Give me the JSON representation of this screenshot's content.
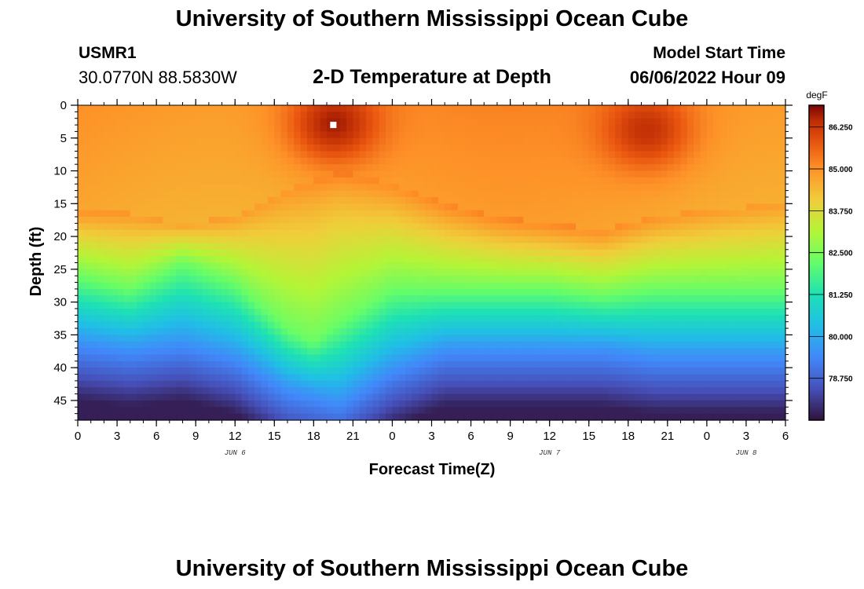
{
  "header": {
    "title": "University of Southern Mississippi Ocean Cube",
    "station_id": "USMR1",
    "coordinates": "30.0770N  88.5830W",
    "chart_title": "2-D Temperature at Depth",
    "model_start_label": "Model Start Time",
    "model_start_value": "06/06/2022 Hour 09"
  },
  "footer": {
    "title": "University of Southern Mississippi Ocean Cube"
  },
  "chart_data": {
    "type": "heatmap",
    "title": "2-D Temperature at Depth",
    "xlabel": "Forecast Time(Z)",
    "ylabel": "Depth (ft)",
    "x_range_hours": [
      0,
      54
    ],
    "x_tick_hours": [
      0,
      3,
      6,
      9,
      12,
      15,
      18,
      21,
      24,
      27,
      30,
      33,
      36,
      39,
      42,
      45,
      48,
      51,
      54
    ],
    "x_tick_labels": [
      "0",
      "3",
      "6",
      "9",
      "12",
      "15",
      "18",
      "21",
      "0",
      "3",
      "6",
      "9",
      "12",
      "15",
      "18",
      "21",
      "0",
      "3",
      "6"
    ],
    "date_labels": [
      {
        "text": "JUN 6",
        "hour": 12
      },
      {
        "text": "JUN 7",
        "hour": 36
      },
      {
        "text": "JUN 8",
        "hour": 51
      }
    ],
    "y_range_ft": [
      0,
      48
    ],
    "y_reversed": true,
    "y_ticks": [
      0,
      5,
      10,
      15,
      20,
      25,
      30,
      35,
      40,
      45
    ],
    "y_tick_labels": [
      "0",
      "5",
      "10",
      "15",
      "20",
      "25",
      "30",
      "35",
      "40",
      "45"
    ],
    "colorbar": {
      "unit": "degF",
      "range": [
        77.5,
        86.9
      ],
      "ticks": [
        78.75,
        80.0,
        81.25,
        82.5,
        83.75,
        85.0,
        86.25
      ],
      "tick_labels": [
        "78.750",
        "80.000",
        "81.250",
        "82.500",
        "83.750",
        "85.000",
        "86.250"
      ]
    },
    "surface_temperature_peaks": [
      {
        "hour": 19.5,
        "depth_ft": 3,
        "value": 86.9
      },
      {
        "hour": 43.5,
        "depth_ft": 4,
        "value": 86.6
      }
    ],
    "thermocline_depth_ft": {
      "hours": [
        0,
        4,
        8,
        12,
        16,
        20,
        24,
        28,
        32,
        36,
        40,
        44,
        48,
        54
      ],
      "values": [
        19,
        19.5,
        21,
        20,
        16,
        13,
        15,
        18,
        20,
        21,
        22,
        20,
        19,
        18
      ]
    },
    "green_depth_ft": {
      "hours": [
        0,
        4,
        8,
        12,
        16,
        18,
        20,
        24,
        28,
        32,
        36,
        40,
        44,
        48,
        54
      ],
      "values": [
        26,
        28,
        24,
        27,
        34,
        36,
        33,
        28,
        28,
        28,
        28,
        29,
        28,
        28,
        28
      ]
    },
    "cold_core_depth_ft": {
      "hours": [
        0,
        4,
        8,
        12,
        16,
        20,
        24,
        28,
        32,
        36,
        40,
        44,
        48,
        54
      ],
      "values": [
        36,
        37,
        36,
        38,
        43,
        45,
        40,
        37,
        37,
        37,
        37,
        38,
        38,
        38
      ]
    },
    "marker": {
      "hour": 19.5,
      "depth_ft": 3
    }
  }
}
